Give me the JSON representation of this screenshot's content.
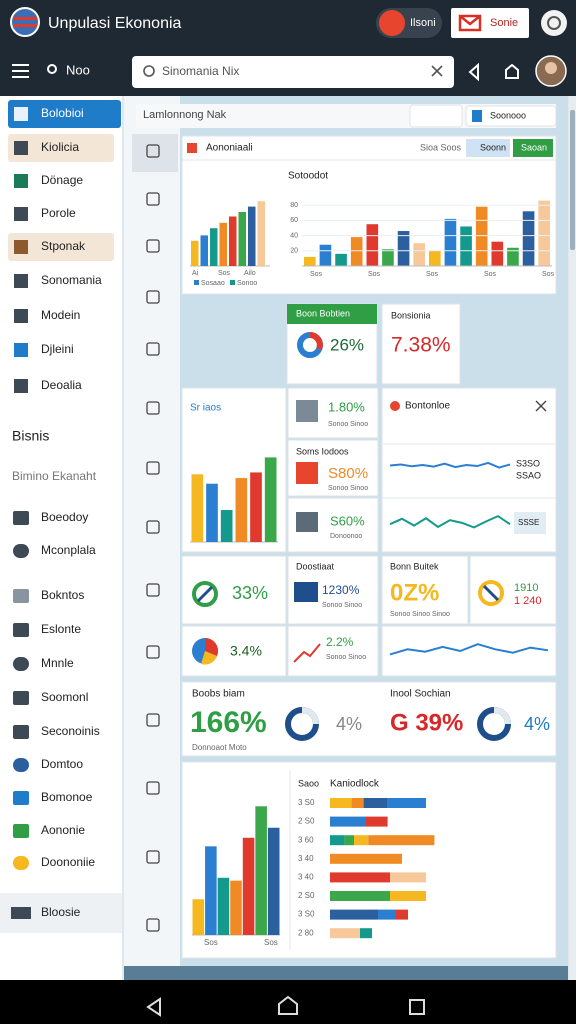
{
  "app": {
    "title": "Unpulasi Ekononia",
    "button_1": "Ilsoni",
    "button_2": "Sonie"
  },
  "toolbar": {
    "location": "Noo",
    "search": "Sinomania Nix"
  },
  "sidebar": {
    "items_top": [
      "Bolobioi",
      "Kiolicia",
      "Dönage",
      "Porole",
      "Stponak",
      "Sonomania",
      "Modein",
      "Djleini",
      "Deoalia"
    ],
    "section": "Bisnis",
    "subsection": "Bimino Ekanaht",
    "items_bottom": [
      "Boeodoy",
      "Mconplala",
      "Bokntos",
      "Eslonte",
      "Mnnle",
      "Soomonl",
      "Seconoinis",
      "Domtoo",
      "Bomonoe",
      "Aononie",
      "Doononiie"
    ],
    "footer": "Bloosie"
  },
  "header": {
    "title": "Lamlonnong Nak",
    "button": "Soonooo"
  },
  "palette": [
    "#f5b820",
    "#2a7fd0",
    "#139a8c",
    "#f08a24",
    "#e03a2e",
    "#3aa84a",
    "#2c5f9e",
    "#f7c99a"
  ],
  "panel_1": {
    "title": "Aononiaali",
    "filter": "Sioa Soos",
    "button_blue": "Soonn",
    "button_green": "Saoan",
    "chart_left": {
      "ylim": [
        0,
        100
      ],
      "values": [
        28,
        34,
        42,
        48,
        55,
        60,
        66,
        72
      ],
      "x_labels": [
        "Ai",
        "Sos",
        "Ailo"
      ],
      "legend": [
        "Sosaao",
        "Sonoo"
      ]
    },
    "chart_right": {
      "title": "Sotoodot",
      "ylim": [
        0,
        100
      ],
      "yticks": [
        20,
        40,
        60,
        80
      ],
      "values": [
        12,
        28,
        16,
        38,
        55,
        22,
        46,
        30,
        20,
        62,
        52,
        78,
        32,
        24,
        72,
        86
      ],
      "x_labels": [
        "Sos",
        "Sos",
        "Sos",
        "Sos",
        "Sos"
      ]
    }
  },
  "kpi_1": {
    "title": "Boon Bobtien",
    "value": "26%"
  },
  "kpi_2": {
    "title": "Bonsionia",
    "value": "7.38%"
  },
  "panel_2": {
    "title": "Sr iaos",
    "chart": {
      "ylim": [
        0,
        100
      ],
      "values": [
        72,
        62,
        34,
        68,
        74,
        90
      ]
    }
  },
  "card_1": {
    "value": "1.80%",
    "sub": "Sonoo Sinoo"
  },
  "card_2": {
    "title": "Soms Iodoos",
    "value": "S80%",
    "sub": "Sonoo Sinoo"
  },
  "card_3": {
    "value": "S60%",
    "sub": "Donoonoo"
  },
  "panel_3": {
    "title": "Bontonloe",
    "tags": [
      "S3SO",
      "SSAO",
      "SSSE"
    ],
    "line_1": {
      "ylim": [
        0,
        100
      ],
      "values": [
        48,
        52,
        45,
        50,
        44,
        55,
        42,
        50,
        46,
        58,
        40,
        52
      ]
    },
    "line_2": {
      "ylim": [
        0,
        100
      ],
      "values": [
        40,
        60,
        35,
        62,
        30,
        55,
        45,
        28,
        50,
        70,
        40
      ]
    }
  },
  "card_4": {
    "value": "33%"
  },
  "card_5": {
    "title": "Doostiaat",
    "value": "1230%",
    "sub": "Sonoo Sinoo"
  },
  "card_6": {
    "title": "Bonn Buitek",
    "value": "0Z%",
    "sub": "Sonoo Sinoo Sinoo"
  },
  "card_7": {
    "value": "1910",
    "sub": "1 240"
  },
  "card_8": {
    "value": "3.4%"
  },
  "card_9": {
    "value": "2.2%",
    "sub": "Sonoo Sinoo"
  },
  "line_3": {
    "ylim": [
      0,
      100
    ],
    "values": [
      40,
      55,
      48,
      62,
      50,
      70,
      55,
      45,
      60,
      52
    ]
  },
  "panel_4": {
    "left_title": "Boobs biam",
    "left_value": "166%",
    "left_small": "4%",
    "left_sub": "Donnoaot Moto",
    "right_title": "Inool Sochian",
    "right_value": "G 39%",
    "right_small": "4%"
  },
  "panel_5": {
    "chart": {
      "ylim": [
        0,
        100
      ],
      "values": [
        25,
        62,
        40,
        38,
        68,
        90,
        75
      ],
      "x_labels": [
        "Sos",
        "Sos"
      ]
    },
    "title": "Kaniodlock",
    "side_title": "Saoo",
    "rows": [
      {
        "label": "3 S0",
        "segments": [
          18,
          10,
          20,
          32
        ]
      },
      {
        "label": "2 S0",
        "segments": [
          30,
          18
        ]
      },
      {
        "label": "3 60",
        "segments": [
          12,
          8,
          12,
          55
        ]
      },
      {
        "label": "3 40",
        "segments": [
          60
        ]
      },
      {
        "label": "3 40",
        "segments": [
          50,
          30
        ]
      },
      {
        "label": "2 S0",
        "segments": [
          50,
          30
        ]
      },
      {
        "label": "3 S0",
        "segments": [
          40,
          15,
          10
        ]
      },
      {
        "label": "2 80",
        "segments": [
          25,
          10
        ]
      }
    ]
  }
}
